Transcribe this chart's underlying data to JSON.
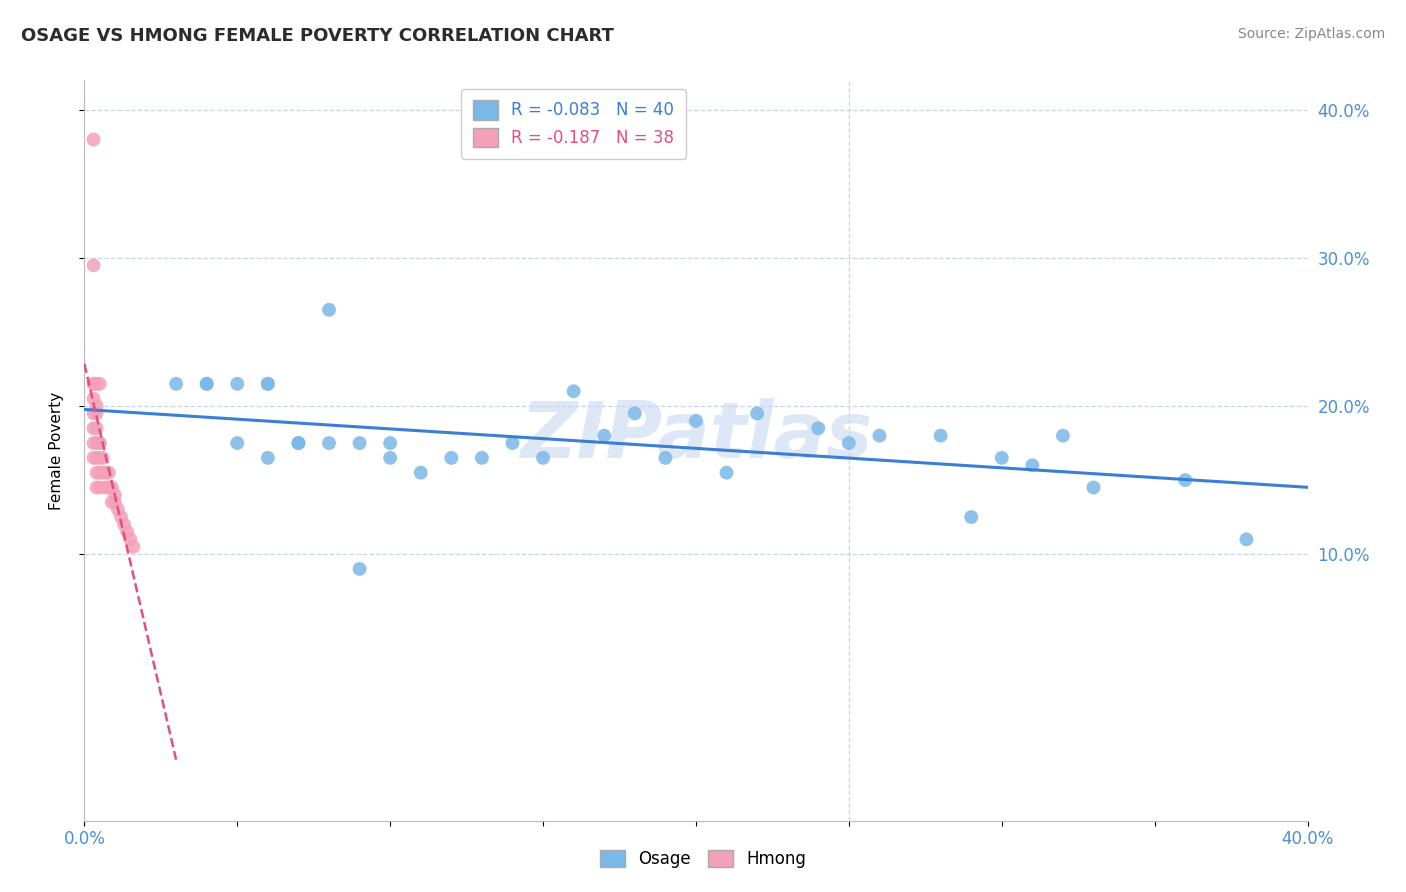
{
  "title": "OSAGE VS HMONG FEMALE POVERTY CORRELATION CHART",
  "source": "Source: ZipAtlas.com",
  "ylabel": "Female Poverty",
  "xlabel": "",
  "xlim": [
    0.0,
    0.4
  ],
  "ylim": [
    -0.08,
    0.42
  ],
  "yticks": [
    0.1,
    0.2,
    0.3,
    0.4
  ],
  "ytick_labels_right": [
    "10.0%",
    "20.0%",
    "30.0%",
    "40.0%"
  ],
  "xticks": [
    0.0,
    0.05,
    0.1,
    0.15,
    0.2,
    0.25,
    0.3,
    0.35,
    0.4
  ],
  "xtick_labels": [
    "0.0%",
    "",
    "",
    "",
    "",
    "",
    "",
    "",
    "40.0%"
  ],
  "osage_color": "#7ab8e8",
  "hmong_color": "#f4a0b8",
  "trendline_osage_color": "#3a7fd4",
  "trendline_hmong_color": "#e05080",
  "legend_r_osage": "R = -0.083",
  "legend_n_osage": "N = 40",
  "legend_r_hmong": "R = -0.187",
  "legend_n_hmong": "N = 38",
  "watermark": "ZIPatlas",
  "watermark_color": "#c8d8f0",
  "background_color": "#ffffff",
  "grid_color": "#c8d4e8",
  "osage_x": [
    0.005,
    0.03,
    0.04,
    0.04,
    0.05,
    0.05,
    0.06,
    0.06,
    0.06,
    0.07,
    0.07,
    0.08,
    0.09,
    0.1,
    0.1,
    0.12,
    0.13,
    0.14,
    0.15,
    0.16,
    0.17,
    0.18,
    0.19,
    0.2,
    0.21,
    0.22,
    0.24,
    0.28,
    0.3,
    0.32,
    0.33,
    0.36,
    0.38,
    0.25,
    0.26,
    0.29,
    0.31,
    0.09,
    0.11,
    0.08
  ],
  "osage_y": [
    0.175,
    0.215,
    0.215,
    0.215,
    0.215,
    0.175,
    0.215,
    0.215,
    0.165,
    0.175,
    0.175,
    0.175,
    0.175,
    0.175,
    0.165,
    0.165,
    0.165,
    0.175,
    0.165,
    0.21,
    0.18,
    0.195,
    0.165,
    0.19,
    0.155,
    0.195,
    0.185,
    0.18,
    0.165,
    0.18,
    0.145,
    0.15,
    0.11,
    0.175,
    0.18,
    0.125,
    0.16,
    0.09,
    0.155,
    0.265
  ],
  "hmong_x": [
    0.003,
    0.003,
    0.003,
    0.003,
    0.003,
    0.003,
    0.003,
    0.003,
    0.004,
    0.004,
    0.004,
    0.004,
    0.004,
    0.004,
    0.004,
    0.004,
    0.005,
    0.005,
    0.005,
    0.005,
    0.005,
    0.006,
    0.006,
    0.007,
    0.007,
    0.008,
    0.008,
    0.009,
    0.009,
    0.01,
    0.01,
    0.011,
    0.012,
    0.013,
    0.014,
    0.015,
    0.016,
    0.003
  ],
  "hmong_y": [
    0.38,
    0.215,
    0.215,
    0.205,
    0.195,
    0.185,
    0.175,
    0.165,
    0.215,
    0.2,
    0.195,
    0.185,
    0.175,
    0.165,
    0.155,
    0.145,
    0.215,
    0.175,
    0.165,
    0.155,
    0.145,
    0.165,
    0.155,
    0.155,
    0.145,
    0.155,
    0.145,
    0.145,
    0.135,
    0.14,
    0.135,
    0.13,
    0.125,
    0.12,
    0.115,
    0.11,
    0.105,
    0.295
  ]
}
